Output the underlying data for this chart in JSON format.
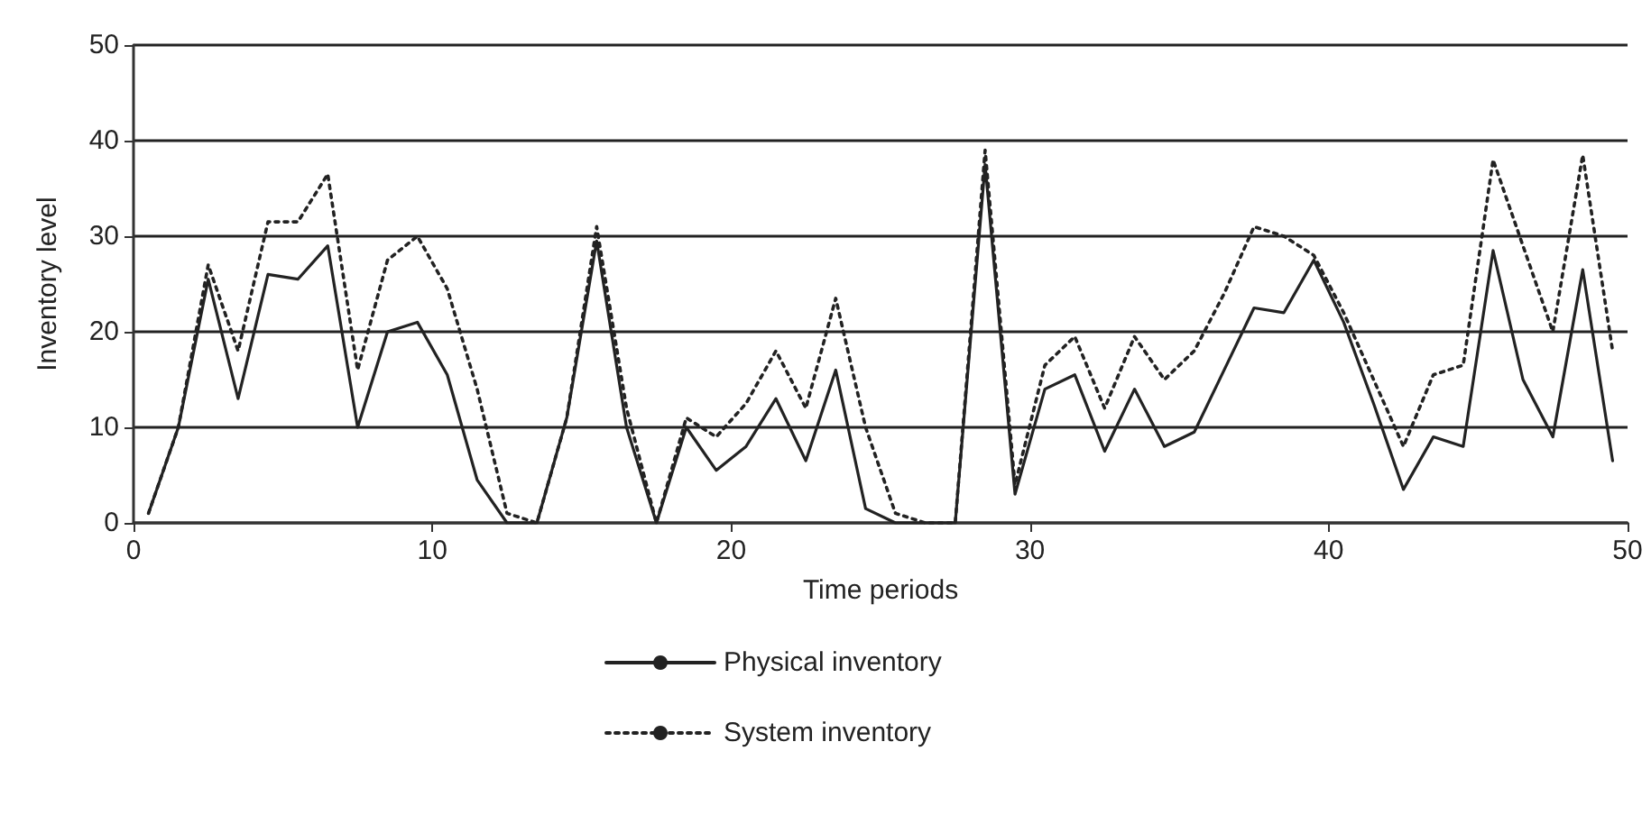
{
  "chart_data": {
    "type": "line",
    "xlabel": "Time periods",
    "ylabel": "Inventory level",
    "x": [
      0.5,
      1.5,
      2.5,
      3.5,
      4.5,
      5.5,
      6.5,
      7.5,
      8.5,
      9.5,
      10.5,
      11.5,
      12.5,
      13.5,
      14.5,
      15.5,
      16.5,
      17.5,
      18.5,
      19.5,
      20.5,
      21.5,
      22.5,
      23.5,
      24.5,
      25.5,
      26.5,
      27.5,
      28.5,
      29.5,
      30.5,
      31.5,
      32.5,
      33.5,
      34.5,
      35.5,
      36.5,
      37.5,
      38.5,
      39.5,
      40.5,
      41.5,
      42.5,
      43.5,
      44.5,
      45.5,
      46.5,
      47.5,
      48.5,
      49.5
    ],
    "series": [
      {
        "name": "Physical inventory",
        "color": "#222222",
        "line_style": "solid",
        "values": [
          1,
          10,
          25.5,
          13,
          26,
          25.5,
          29,
          10,
          20,
          21,
          15.5,
          4.5,
          0,
          0,
          11,
          29.5,
          10,
          0,
          10,
          5.5,
          8,
          13,
          6.5,
          16,
          1.5,
          0,
          0,
          0,
          37.5,
          3,
          14,
          15.5,
          7.5,
          14,
          8,
          9.5,
          16,
          22.5,
          22,
          27.5,
          21,
          12.5,
          3.5,
          9,
          8,
          28.5,
          15,
          9,
          26.5,
          6.5
        ]
      },
      {
        "name": "System inventory",
        "color": "#222222",
        "line_style": "dotted",
        "values": [
          1,
          10,
          27,
          18,
          31.5,
          31.5,
          36.5,
          16,
          27.5,
          30,
          24.5,
          14,
          1,
          0,
          11,
          31,
          12,
          0,
          11,
          9,
          12.5,
          18,
          12,
          23.5,
          10,
          1,
          0,
          0,
          39,
          4,
          16.5,
          19.5,
          12,
          19.5,
          15,
          18,
          24,
          31,
          30,
          28,
          22,
          15,
          8,
          15.5,
          16.5,
          38,
          29,
          20,
          38.5,
          18
        ]
      }
    ],
    "xlim": [
      0,
      50
    ],
    "xticks": [
      0,
      10,
      20,
      30,
      40,
      50
    ],
    "ylim": [
      0,
      50
    ],
    "yticks": [
      0,
      10,
      20,
      30,
      40,
      50
    ],
    "grid": "y",
    "legend": "bottom",
    "marker": "none"
  }
}
